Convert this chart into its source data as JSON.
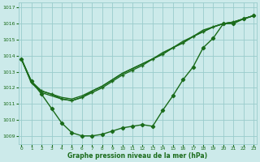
{
  "xlabel": "Graphe pression niveau de la mer (hPa)",
  "bg_color": "#cceaea",
  "grid_color": "#99cccc",
  "line_color": "#1a6b1a",
  "text_color": "#1a6b1a",
  "xlim": [
    -0.3,
    23.3
  ],
  "ylim": [
    1008.5,
    1017.3
  ],
  "yticks": [
    1009,
    1010,
    1011,
    1012,
    1013,
    1014,
    1015,
    1016,
    1017
  ],
  "xticks": [
    0,
    1,
    2,
    3,
    4,
    5,
    6,
    7,
    8,
    9,
    10,
    11,
    12,
    13,
    14,
    15,
    16,
    17,
    18,
    19,
    20,
    21,
    22,
    23
  ],
  "series1": [
    1013.8,
    1012.4,
    1011.6,
    1010.7,
    1009.8,
    1009.2,
    1009.0,
    1009.0,
    1009.1,
    1009.3,
    1009.5,
    1009.6,
    1009.7,
    1009.6,
    1010.6,
    1011.5,
    1012.5,
    1013.3,
    1014.5,
    1015.1,
    1016.0,
    1016.0,
    1016.3,
    1016.5
  ],
  "series2": [
    1013.8,
    1012.4,
    1011.8,
    1011.6,
    1011.3,
    1011.2,
    1011.4,
    1011.7,
    1012.0,
    1012.4,
    1012.8,
    1013.1,
    1013.4,
    1013.8,
    1014.1,
    1014.5,
    1014.8,
    1015.2,
    1015.5,
    1015.8,
    1016.0,
    1016.1,
    1016.3,
    1016.5
  ],
  "series3": [
    1013.8,
    1012.3,
    1011.8,
    1011.6,
    1011.4,
    1011.3,
    1011.5,
    1011.8,
    1012.1,
    1012.5,
    1012.9,
    1013.2,
    1013.5,
    1013.8,
    1014.1,
    1014.5,
    1014.8,
    1015.2,
    1015.5,
    1015.8,
    1016.0,
    1016.1,
    1016.3,
    1016.5
  ],
  "series4": [
    1013.8,
    1012.3,
    1011.7,
    1011.5,
    1011.3,
    1011.2,
    1011.4,
    1011.8,
    1012.1,
    1012.5,
    1012.9,
    1013.2,
    1013.5,
    1013.8,
    1014.2,
    1014.5,
    1014.9,
    1015.2,
    1015.6,
    1015.8,
    1016.0,
    1016.1,
    1016.3,
    1016.5
  ],
  "marker_size": 2.2,
  "line_width": 1.0
}
